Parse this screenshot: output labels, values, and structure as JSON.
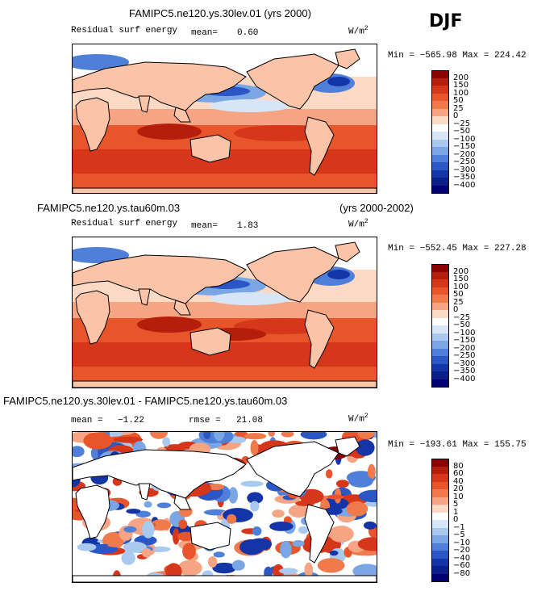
{
  "season_label": "DJF",
  "panels": [
    {
      "id": "p1",
      "title": "FAMIPC5.ne120.ys.30lev.01 (yrs 2000)",
      "title_left": "",
      "title_right": "",
      "field_label": "Residual surf energy",
      "stat_left": "mean=",
      "stat_left_value": "0.60",
      "stat_right": "",
      "stat_right_value": "",
      "units": "W/m",
      "units_exp": "2",
      "minmax": "Min = −565.98 Max = 224.42",
      "colorbar_levels": [
        "200",
        "150",
        "100",
        "50",
        "25",
        "0",
        "−25",
        "−50",
        "−100",
        "−150",
        "−200",
        "−250",
        "−300",
        "−350",
        "−400"
      ]
    },
    {
      "id": "p2",
      "title": "",
      "title_left": "FAMIPC5.ne120.ys.tau60m.03",
      "title_right": "(yrs 2000-2002)",
      "field_label": "Residual surf energy",
      "stat_left": "mean=",
      "stat_left_value": "1.83",
      "stat_right": "",
      "stat_right_value": "",
      "units": "W/m",
      "units_exp": "2",
      "minmax": "Min = −552.45 Max = 227.28",
      "colorbar_levels": [
        "200",
        "150",
        "100",
        "50",
        "25",
        "0",
        "−25",
        "−50",
        "−100",
        "−150",
        "−200",
        "−250",
        "−300",
        "−350",
        "−400"
      ]
    },
    {
      "id": "p3",
      "title": "FAMIPC5.ne120.ys.30lev.01 - FAMIPC5.ne120.ys.tau60m.03",
      "title_left": "",
      "title_right": "",
      "field_label": "",
      "stat_left": "mean =",
      "stat_left_value": "−1.22",
      "stat_right": "rmse =",
      "stat_right_value": "21.08",
      "units": "W/m",
      "units_exp": "2",
      "minmax": "Min = −193.61 Max = 155.75",
      "colorbar_levels": [
        "80",
        "60",
        "40",
        "20",
        "10",
        "5",
        "1",
        "0",
        "−1",
        "−5",
        "−10",
        "−20",
        "−40",
        "−60",
        "−80"
      ]
    }
  ],
  "colors": {
    "abs_scale": [
      "#8b0000",
      "#b51e0a",
      "#d6361a",
      "#e8552b",
      "#f07a4c",
      "#f6a584",
      "#fcd9c4",
      "#ffffff",
      "#d6e6f7",
      "#a9c9ee",
      "#7ba6e4",
      "#4f7fd8",
      "#2a56c6",
      "#1435a8",
      "#0a1f8a",
      "#000070"
    ],
    "diff_scale": [
      "#8b0000",
      "#b51e0a",
      "#d6361a",
      "#e8552b",
      "#f07a4c",
      "#f6a584",
      "#fcd9c4",
      "#ffffff",
      "#d6e6f7",
      "#a9c9ee",
      "#7ba6e4",
      "#4f7fd8",
      "#2a56c6",
      "#1435a8",
      "#0a1f8a",
      "#000070"
    ],
    "land": "#fbc3a8"
  },
  "chart_data": [
    {
      "type": "heatmap",
      "title": "FAMIPC5.ne120.ys.30lev.01 (yrs 2000)",
      "subtitle": "Residual surf energy",
      "units": "W/m^2",
      "season": "DJF",
      "mean": 0.6,
      "min": -565.98,
      "max": 224.42,
      "contour_levels": [
        -400,
        -350,
        -300,
        -250,
        -200,
        -150,
        -100,
        -50,
        -25,
        0,
        25,
        50,
        100,
        150,
        200
      ]
    },
    {
      "type": "heatmap",
      "title": "FAMIPC5.ne120.ys.tau60m.03 (yrs 2000-2002)",
      "subtitle": "Residual surf energy",
      "units": "W/m^2",
      "season": "DJF",
      "mean": 1.83,
      "min": -552.45,
      "max": 227.28,
      "contour_levels": [
        -400,
        -350,
        -300,
        -250,
        -200,
        -150,
        -100,
        -50,
        -25,
        0,
        25,
        50,
        100,
        150,
        200
      ]
    },
    {
      "type": "heatmap",
      "title": "FAMIPC5.ne120.ys.30lev.01 - FAMIPC5.ne120.ys.tau60m.03",
      "units": "W/m^2",
      "season": "DJF",
      "mean": -1.22,
      "rmse": 21.08,
      "min": -193.61,
      "max": 155.75,
      "contour_levels": [
        -80,
        -60,
        -40,
        -20,
        -10,
        -5,
        -1,
        0,
        1,
        5,
        10,
        20,
        40,
        60,
        80
      ]
    }
  ]
}
